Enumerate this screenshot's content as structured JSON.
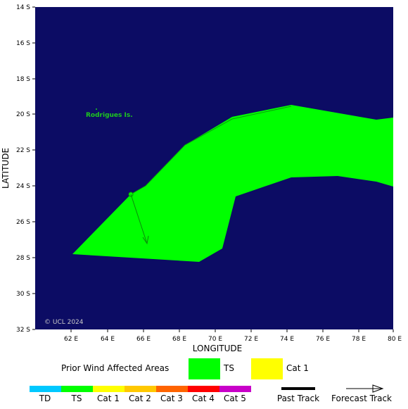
{
  "map": {
    "xlabel": "LONGITUDE",
    "ylabel": "LATITUDE",
    "copyright": "© UCL 2024",
    "island_label": "Rodrigues Is.",
    "x_ticks": [
      "62 E",
      "64 E",
      "66 E",
      "68 E",
      "70 E",
      "72 E",
      "74 E",
      "76 E",
      "78 E",
      "80 E"
    ],
    "y_ticks": [
      "14 S",
      "16 S",
      "18 S",
      "20 S",
      "22 S",
      "24 S",
      "26 S",
      "28 S",
      "30 S",
      "32 S"
    ],
    "colors": {
      "ocean": "#0c0c64",
      "ts": "#00ff00",
      "cat1": "#ffff00"
    }
  },
  "legend": {
    "title": "Prior Wind Affected Areas",
    "swatches": [
      {
        "label": "TS",
        "color": "#00ff00"
      },
      {
        "label": "Cat 1",
        "color": "#ffff00"
      }
    ],
    "scale": [
      {
        "label": "TD",
        "color": "#00c8ff"
      },
      {
        "label": "TS",
        "color": "#00ff00"
      },
      {
        "label": "Cat 1",
        "color": "#ffff00"
      },
      {
        "label": "Cat 2",
        "color": "#ffc800"
      },
      {
        "label": "Cat 3",
        "color": "#ff6400"
      },
      {
        "label": "Cat 4",
        "color": "#ff0000"
      },
      {
        "label": "Cat 5",
        "color": "#c800c8"
      }
    ],
    "past_track": "Past Track",
    "forecast_track": "Forecast Track"
  }
}
